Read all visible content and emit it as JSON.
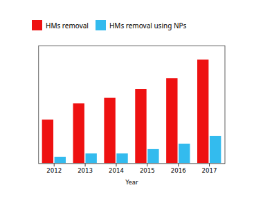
{
  "chart_data": {
    "type": "bar",
    "categories": [
      "2012",
      "2013",
      "2014",
      "2015",
      "2016",
      "2017"
    ],
    "series": [
      {
        "name": "HMs removal",
        "color": "#ee1111",
        "values": [
          40,
          55,
          60,
          68,
          78,
          95
        ]
      },
      {
        "name": "HMs removal using NPs",
        "color": "#33bbee",
        "values": [
          6,
          9,
          9,
          13,
          18,
          25
        ]
      }
    ],
    "xlabel": "Year",
    "ylim": [
      0,
      108
    ],
    "tick_labels": "x",
    "legend": "upper left"
  }
}
